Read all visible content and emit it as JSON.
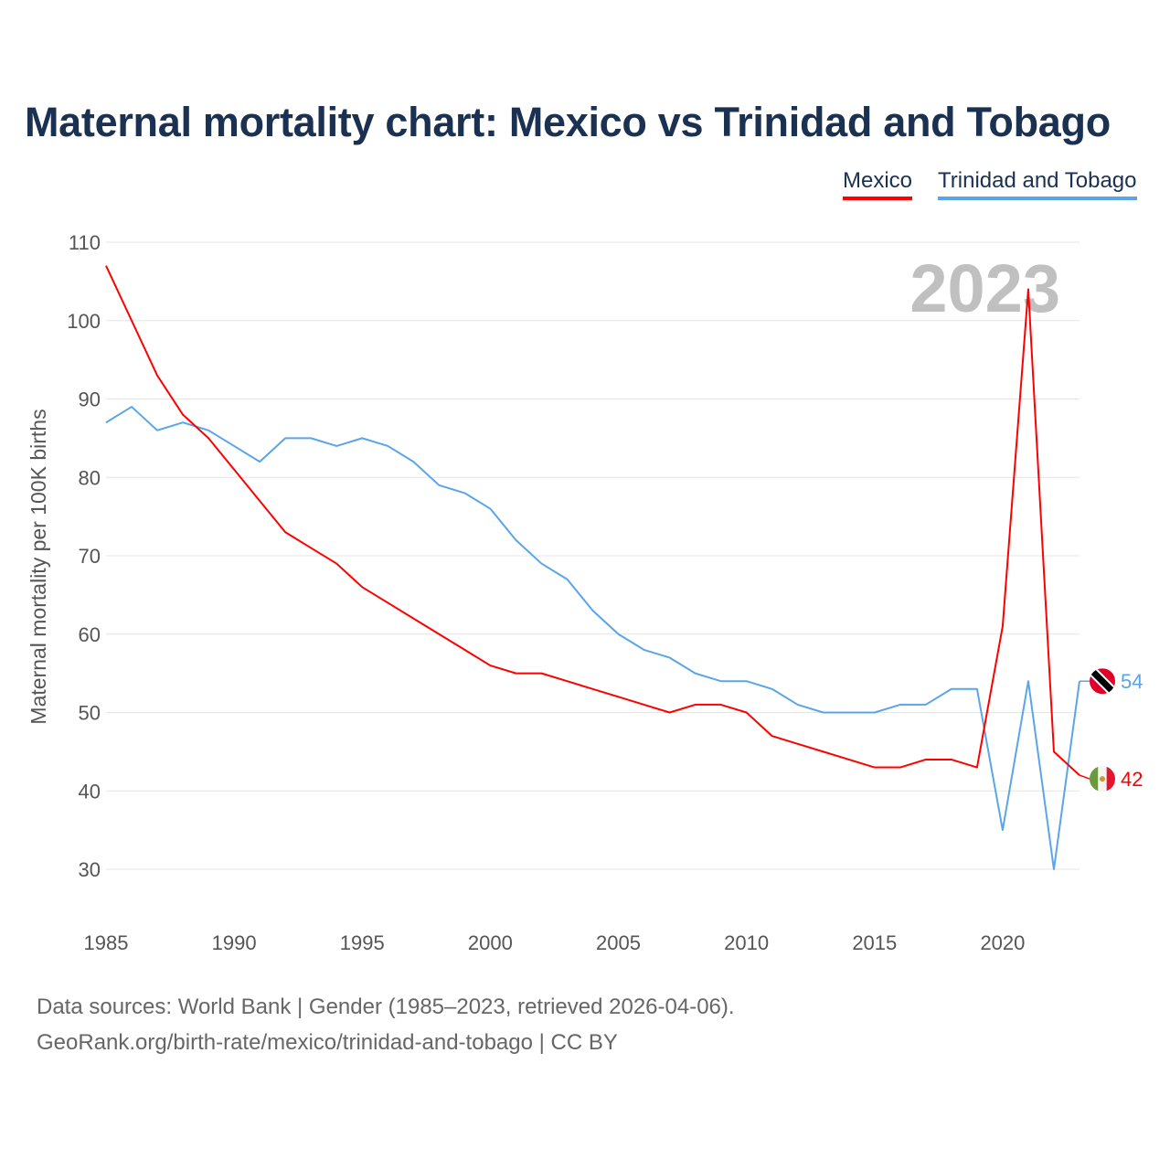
{
  "title": "Maternal mortality chart: Mexico vs Trinidad and Tobago",
  "legend": [
    "Mexico",
    "Trinidad and Tobago"
  ],
  "year_label": "2023",
  "source_line1": "Data sources: World Bank | Gender (1985–2023, retrieved 2026-04-06).",
  "source_line2": "GeoRank.org/birth-rate/mexico/trinidad-and-tobago | CC BY",
  "chart_data": {
    "type": "line",
    "title": "Maternal mortality chart: Mexico vs Trinidad and Tobago",
    "xlabel": "",
    "ylabel": "Maternal mortality per 100K births",
    "xlim": [
      1985,
      2023
    ],
    "ylim": [
      30,
      110
    ],
    "yticks": [
      30,
      40,
      50,
      60,
      70,
      80,
      90,
      100,
      110
    ],
    "xticks": [
      1985,
      1990,
      1995,
      2000,
      2005,
      2010,
      2015,
      2020
    ],
    "grid": true,
    "legend_position": "top-right",
    "x": [
      1985,
      1986,
      1987,
      1988,
      1989,
      1990,
      1991,
      1992,
      1993,
      1994,
      1995,
      1996,
      1997,
      1998,
      1999,
      2000,
      2001,
      2002,
      2003,
      2004,
      2005,
      2006,
      2007,
      2008,
      2009,
      2010,
      2011,
      2012,
      2013,
      2014,
      2015,
      2016,
      2017,
      2018,
      2019,
      2020,
      2021,
      2022,
      2023
    ],
    "series": [
      {
        "name": "Mexico",
        "color": "#ff0000",
        "end_label": "42",
        "values": [
          107,
          100,
          93,
          88,
          85,
          81,
          77,
          73,
          71,
          69,
          66,
          64,
          62,
          60,
          58,
          56,
          55,
          55,
          54,
          53,
          52,
          51,
          50,
          51,
          51,
          50,
          47,
          46,
          45,
          44,
          43,
          43,
          44,
          44,
          43,
          61,
          104,
          45,
          42
        ]
      },
      {
        "name": "Trinidad and Tobago",
        "color": "#5aa5ea",
        "end_label": "54",
        "values": [
          87,
          89,
          86,
          87,
          86,
          84,
          82,
          85,
          85,
          84,
          85,
          84,
          82,
          79,
          78,
          76,
          72,
          69,
          67,
          63,
          60,
          58,
          57,
          55,
          54,
          54,
          53,
          51,
          50,
          50,
          50,
          51,
          51,
          53,
          53,
          35,
          54,
          30,
          54
        ]
      }
    ]
  }
}
